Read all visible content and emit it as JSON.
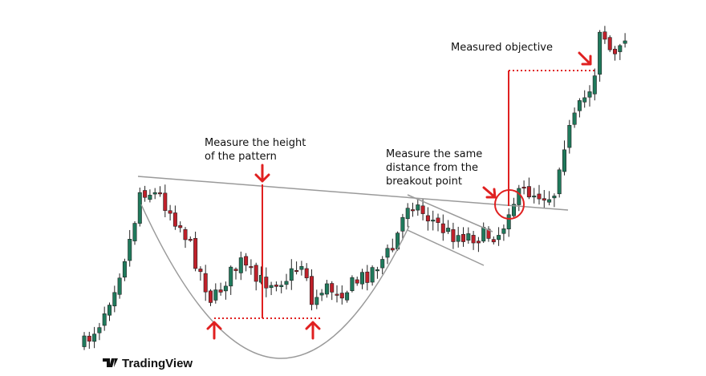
{
  "annotations": {
    "height": [
      "Measure the height",
      "of the pattern"
    ],
    "distance": [
      "Measure the same",
      "distance from the",
      "breakout point"
    ],
    "objective": "Measured objective"
  },
  "logo": "TradingView"
}
